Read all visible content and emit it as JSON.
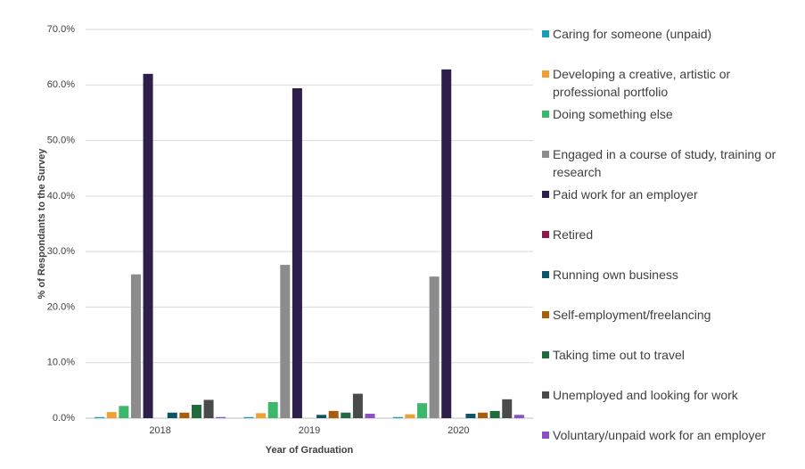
{
  "chart_data": {
    "type": "bar",
    "x_label": "Year of Graduation",
    "y_label": "% of Respondants to the Survey",
    "categories": [
      "2018",
      "2019",
      "2020"
    ],
    "ylim": [
      0,
      70
    ],
    "yticks": [
      {
        "value": 0,
        "label": "0.0%"
      },
      {
        "value": 10,
        "label": "10.0%"
      },
      {
        "value": 20,
        "label": "20.0%"
      },
      {
        "value": 30,
        "label": "30.0%"
      },
      {
        "value": 40,
        "label": "40.0%"
      },
      {
        "value": 50,
        "label": "50.0%"
      },
      {
        "value": 60,
        "label": "60.0%"
      },
      {
        "value": 70,
        "label": "70.0%"
      }
    ],
    "grid": true,
    "legend": "right",
    "series": [
      {
        "name": "Caring for someone (unpaid)",
        "color": "#1f9bb5",
        "values": [
          0.2,
          0.2,
          0.2
        ]
      },
      {
        "name": "Developing a creative, artistic or professional portfolio",
        "color": "#f0a030",
        "values": [
          1.1,
          0.9,
          0.7
        ]
      },
      {
        "name": "Doing something else",
        "color": "#3cb86c",
        "values": [
          2.2,
          2.9,
          2.7
        ]
      },
      {
        "name": "Engaged in a course of study, training or research",
        "color": "#8c8c8c",
        "values": [
          25.9,
          27.6,
          25.5
        ]
      },
      {
        "name": "Paid work for an employer",
        "color": "#2e1e4a",
        "values": [
          62.0,
          59.4,
          62.8
        ]
      },
      {
        "name": "Retired",
        "color": "#8b1a4a",
        "values": [
          0.0,
          0.0,
          0.0
        ]
      },
      {
        "name": "Running own business",
        "color": "#0e5468",
        "values": [
          1.0,
          0.6,
          0.8
        ]
      },
      {
        "name": "Self-employment/freelancing",
        "color": "#a85c0c",
        "values": [
          1.0,
          1.3,
          1.0
        ]
      },
      {
        "name": "Taking time out to travel",
        "color": "#1e6b3c",
        "values": [
          2.4,
          1.0,
          1.3
        ]
      },
      {
        "name": "Unemployed and looking for work",
        "color": "#4a4a4a",
        "values": [
          3.3,
          4.4,
          3.4
        ]
      },
      {
        "name": "Voluntary/unpaid work for an employer",
        "color": "#8c4fc4",
        "values": [
          0.2,
          0.8,
          0.6
        ]
      }
    ]
  }
}
